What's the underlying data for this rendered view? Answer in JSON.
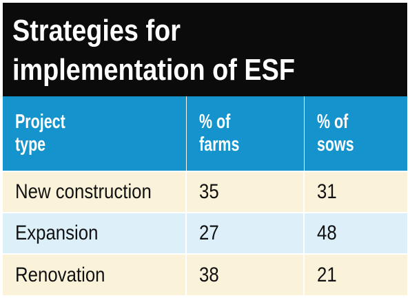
{
  "title": {
    "line1": "Strategies for",
    "line2": "implementation of ESF"
  },
  "table": {
    "headers": [
      {
        "line1": "Project",
        "line2": "type"
      },
      {
        "line1": "% of",
        "line2": "farms"
      },
      {
        "line1": "% of",
        "line2": "sows"
      }
    ],
    "rows": [
      {
        "project_type": "New construction",
        "pct_farms": "35",
        "pct_sows": "31"
      },
      {
        "project_type": "Expansion",
        "pct_farms": "27",
        "pct_sows": "48"
      },
      {
        "project_type": "Renovation",
        "pct_farms": "38",
        "pct_sows": "21"
      }
    ]
  },
  "colors": {
    "title_background": "#0b0b0b",
    "header_background": "#1593cc",
    "row_odd_background": "#fbf2da",
    "row_even_background": "#ddeff8"
  }
}
